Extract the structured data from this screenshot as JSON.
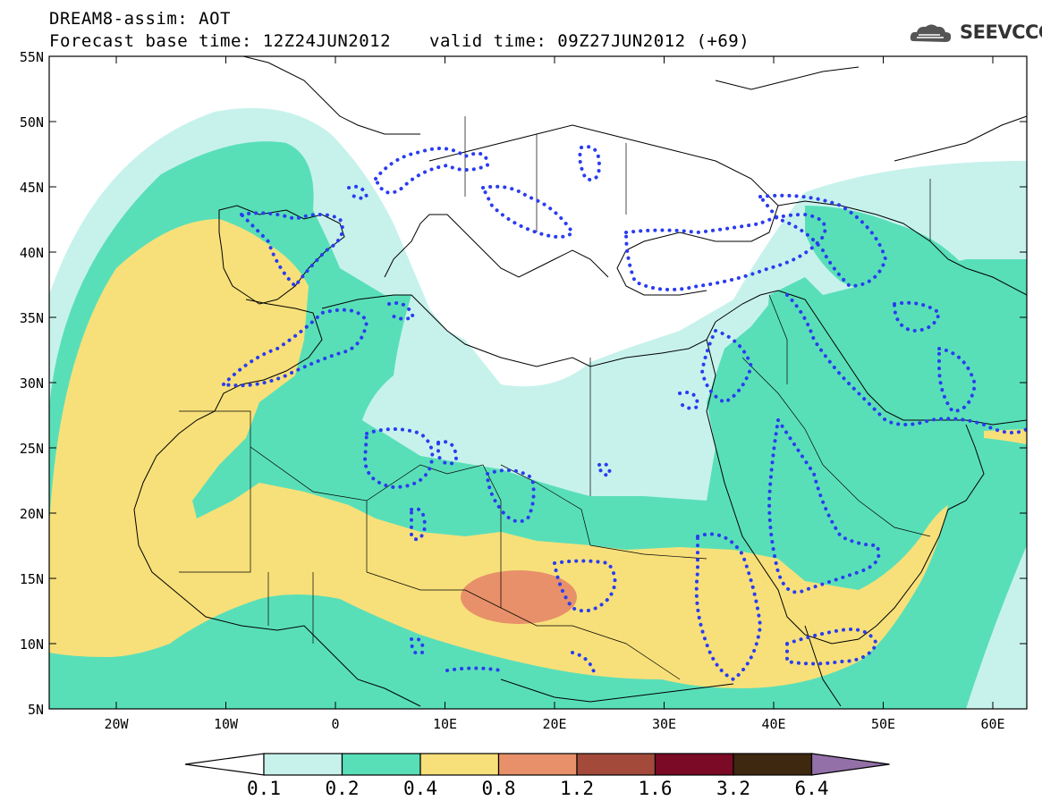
{
  "header": {
    "line1": "DREAM8-assim: AOT",
    "line2": "Forecast base time: 12Z24JUN2012",
    "line3": "valid time: 09Z27JUN2012 (+69)",
    "logo": "SEEVCCC"
  },
  "axes": {
    "lat_labels": [
      "55N",
      "50N",
      "45N",
      "40N",
      "35N",
      "30N",
      "25N",
      "20N",
      "15N",
      "10N",
      "5N"
    ],
    "lon_labels": [
      "20W",
      "10W",
      "0",
      "10E",
      "20E",
      "30E",
      "40E",
      "50E",
      "60E"
    ]
  },
  "legend": {
    "levels": [
      "0.1",
      "0.2",
      "0.4",
      "0.8",
      "1.2",
      "1.6",
      "3.2",
      "6.4"
    ],
    "colors": [
      "#ffffff",
      "#c7f2ec",
      "#59dfb8",
      "#f7e07a",
      "#e8906a",
      "#a34a3a",
      "#7a0a25",
      "#3e2810",
      "#9370a8"
    ]
  },
  "colors": {
    "c01": "#c7f2ec",
    "c02": "#59dfb8",
    "c04": "#f7e07a",
    "c08": "#e8906a",
    "dots": "#2a3cf0"
  }
}
